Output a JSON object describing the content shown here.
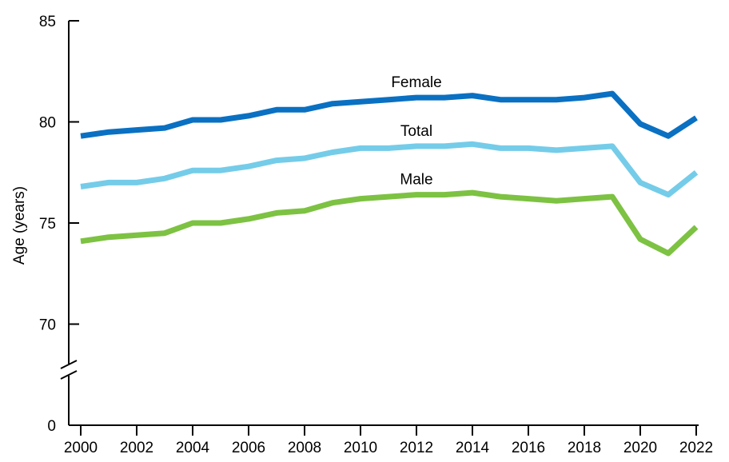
{
  "chart_data": {
    "type": "line",
    "title": "",
    "xlabel": "",
    "ylabel": "Age (years)",
    "x": [
      2000,
      2001,
      2002,
      2003,
      2004,
      2005,
      2006,
      2007,
      2008,
      2009,
      2010,
      2011,
      2012,
      2013,
      2014,
      2015,
      2016,
      2017,
      2018,
      2019,
      2020,
      2021,
      2022
    ],
    "xticks": [
      "2000",
      "2002",
      "2004",
      "2006",
      "2008",
      "2010",
      "2012",
      "2014",
      "2016",
      "2018",
      "2020",
      "2022"
    ],
    "yticks": [
      "0",
      "70",
      "75",
      "80",
      "85"
    ],
    "ylim": [
      68,
      85
    ],
    "y_axis_break": true,
    "grid": false,
    "series": [
      {
        "name": "Female",
        "color": "#0a70c2",
        "values": [
          79.3,
          79.5,
          79.6,
          79.7,
          80.1,
          80.1,
          80.3,
          80.6,
          80.6,
          80.9,
          81.0,
          81.1,
          81.2,
          81.2,
          81.3,
          81.1,
          81.1,
          81.1,
          81.2,
          81.4,
          79.9,
          79.3,
          80.2
        ]
      },
      {
        "name": "Total",
        "color": "#74cce9",
        "values": [
          76.8,
          77.0,
          77.0,
          77.2,
          77.6,
          77.6,
          77.8,
          78.1,
          78.2,
          78.5,
          78.7,
          78.7,
          78.8,
          78.8,
          78.9,
          78.7,
          78.7,
          78.6,
          78.7,
          78.8,
          77.0,
          76.4,
          77.5
        ]
      },
      {
        "name": "Male",
        "color": "#7dc242",
        "values": [
          74.1,
          74.3,
          74.4,
          74.5,
          75.0,
          75.0,
          75.2,
          75.5,
          75.6,
          76.0,
          76.2,
          76.3,
          76.4,
          76.4,
          76.5,
          76.3,
          76.2,
          76.1,
          76.2,
          76.3,
          74.2,
          73.5,
          74.8
        ]
      }
    ]
  }
}
